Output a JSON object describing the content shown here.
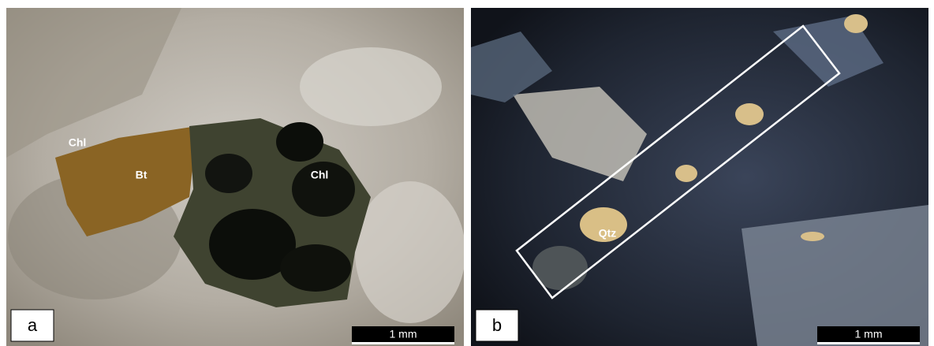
{
  "panels": [
    {
      "label": "a",
      "scale_bar": "1 mm",
      "annotations": [
        "Chl",
        "Bt",
        "Chl"
      ]
    },
    {
      "label": "b",
      "scale_bar": "1 mm",
      "annotations": [
        "Qtz"
      ]
    }
  ]
}
